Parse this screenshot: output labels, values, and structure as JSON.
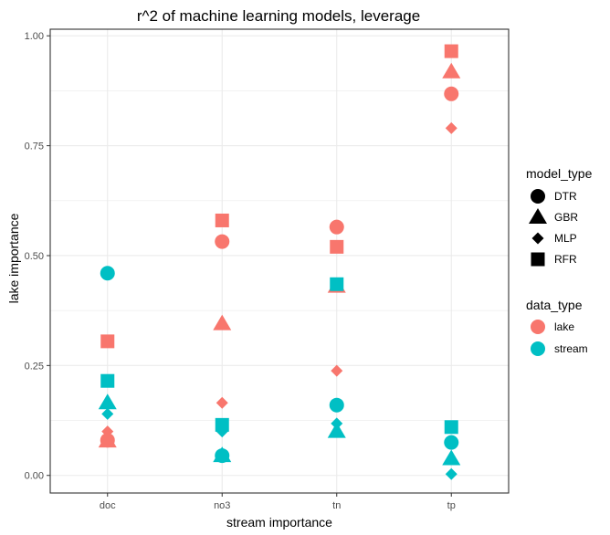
{
  "chart_data": {
    "type": "scatter",
    "title": "r^2 of machine learning models, leverage",
    "xlabel": "stream importance",
    "ylabel": "lake importance",
    "categories": [
      "doc",
      "no3",
      "tn",
      "tp"
    ],
    "ylim": [
      -0.04,
      1.015
    ],
    "yticks": [
      0.0,
      0.25,
      0.5,
      0.75,
      1.0
    ],
    "ytick_labels": [
      "0.00",
      "0.25",
      "0.50",
      "0.75",
      "1.00"
    ],
    "grid": true,
    "legend_position": "right",
    "legends": {
      "shape": {
        "title": "model_type",
        "items": [
          {
            "label": "DTR",
            "shape": "circle"
          },
          {
            "label": "GBR",
            "shape": "triangle"
          },
          {
            "label": "MLP",
            "shape": "diamond"
          },
          {
            "label": "RFR",
            "shape": "square"
          }
        ]
      },
      "color": {
        "title": "data_type",
        "items": [
          {
            "label": "lake",
            "color": "#F8766D"
          },
          {
            "label": "stream",
            "color": "#00BFC4"
          }
        ]
      }
    },
    "series": [
      {
        "name": "lake",
        "color": "#F8766D",
        "points": [
          {
            "x": "doc",
            "model": "DTR",
            "y": 0.08
          },
          {
            "x": "doc",
            "model": "GBR",
            "y": 0.078
          },
          {
            "x": "doc",
            "model": "MLP",
            "y": 0.1
          },
          {
            "x": "doc",
            "model": "RFR",
            "y": 0.305
          },
          {
            "x": "no3",
            "model": "DTR",
            "y": 0.532
          },
          {
            "x": "no3",
            "model": "GBR",
            "y": 0.345
          },
          {
            "x": "no3",
            "model": "MLP",
            "y": 0.165
          },
          {
            "x": "no3",
            "model": "RFR",
            "y": 0.58
          },
          {
            "x": "tn",
            "model": "DTR",
            "y": 0.565
          },
          {
            "x": "tn",
            "model": "GBR",
            "y": 0.43
          },
          {
            "x": "tn",
            "model": "MLP",
            "y": 0.238
          },
          {
            "x": "tn",
            "model": "RFR",
            "y": 0.52
          },
          {
            "x": "tp",
            "model": "DTR",
            "y": 0.868
          },
          {
            "x": "tp",
            "model": "GBR",
            "y": 0.918
          },
          {
            "x": "tp",
            "model": "MLP",
            "y": 0.79
          },
          {
            "x": "tp",
            "model": "RFR",
            "y": 0.965
          }
        ]
      },
      {
        "name": "stream",
        "color": "#00BFC4",
        "points": [
          {
            "x": "doc",
            "model": "DTR",
            "y": 0.46
          },
          {
            "x": "doc",
            "model": "GBR",
            "y": 0.165
          },
          {
            "x": "doc",
            "model": "MLP",
            "y": 0.14
          },
          {
            "x": "doc",
            "model": "RFR",
            "y": 0.215
          },
          {
            "x": "no3",
            "model": "DTR",
            "y": 0.045
          },
          {
            "x": "no3",
            "model": "GBR",
            "y": 0.045
          },
          {
            "x": "no3",
            "model": "MLP",
            "y": 0.1
          },
          {
            "x": "no3",
            "model": "RFR",
            "y": 0.115
          },
          {
            "x": "tn",
            "model": "DTR",
            "y": 0.16
          },
          {
            "x": "tn",
            "model": "GBR",
            "y": 0.1
          },
          {
            "x": "tn",
            "model": "MLP",
            "y": 0.118
          },
          {
            "x": "tn",
            "model": "RFR",
            "y": 0.435
          },
          {
            "x": "tp",
            "model": "DTR",
            "y": 0.075
          },
          {
            "x": "tp",
            "model": "GBR",
            "y": 0.038
          },
          {
            "x": "tp",
            "model": "MLP",
            "y": 0.003
          },
          {
            "x": "tp",
            "model": "RFR",
            "y": 0.11
          }
        ]
      }
    ]
  }
}
